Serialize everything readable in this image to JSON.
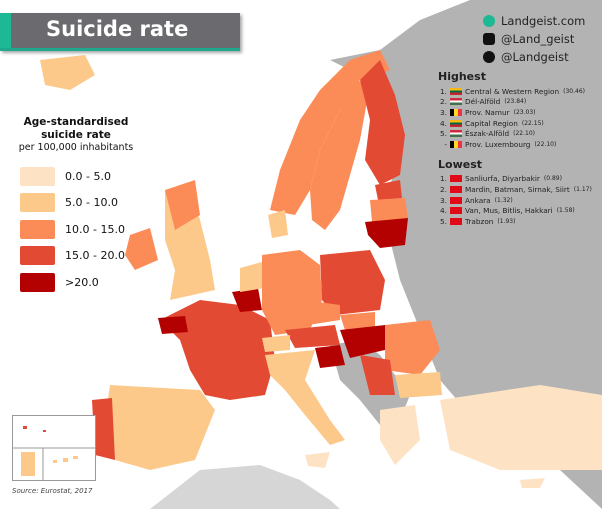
{
  "title": "Suicide rate",
  "social": {
    "website": "Landgeist.com",
    "instagram": "@Land_geist",
    "twitter": "@Landgeist"
  },
  "legend": {
    "title_line1": "Age-standardised",
    "title_line2": "suicide rate",
    "subtitle": "per 100,000 inhabitants",
    "classes": [
      {
        "label": "0.0  -  5.0",
        "color": "#fde3c4"
      },
      {
        "label": "5.0  - 10.0",
        "color": "#fcc98b"
      },
      {
        "label": "10.0 - 15.0",
        "color": "#fb8c57"
      },
      {
        "label": "15.0 - 20.0",
        "color": "#e34a33"
      },
      {
        "label": ">20.0",
        "color": "#b30000"
      }
    ]
  },
  "highest": {
    "heading": "Highest",
    "items": [
      {
        "rank": "1.",
        "flag": "lithuania",
        "name": "Central & Western Region",
        "value": "(30.46)"
      },
      {
        "rank": "2.",
        "flag": "hungary",
        "name": "Dél-Alföld",
        "value": "(23.84)"
      },
      {
        "rank": "3.",
        "flag": "belgium",
        "name": "Prov. Namur",
        "value": "(23.03)"
      },
      {
        "rank": "4.",
        "flag": "lithuania",
        "name": "Capital Region",
        "value": "(22.15)"
      },
      {
        "rank": "5.",
        "flag": "hungary",
        "name": "Észak-Alföld",
        "value": "(22.10)"
      },
      {
        "rank": "-",
        "flag": "belgium",
        "name": "Prov. Luxembourg",
        "value": "(22.10)"
      }
    ]
  },
  "lowest": {
    "heading": "Lowest",
    "items": [
      {
        "rank": "1.",
        "flag": "turkey",
        "name": "Sanliurfa, Diyarbakir",
        "value": "(0.89)"
      },
      {
        "rank": "2.",
        "flag": "turkey",
        "name": "Mardin, Batman, Sirnak, Siirt",
        "value": "(1.17)"
      },
      {
        "rank": "3.",
        "flag": "turkey",
        "name": "Ankara",
        "value": "(1.32)"
      },
      {
        "rank": "4.",
        "flag": "turkey",
        "name": "Van, Mus, Bitlis, Hakkari",
        "value": "(1.58)"
      },
      {
        "rank": "5.",
        "flag": "turkey",
        "name": "Trabzon",
        "value": "(1.93)"
      }
    ]
  },
  "source": "Source: Eurostat, 2017",
  "colors": {
    "no_data": "#b3b3b3",
    "sea": "#ffffff",
    "accent": "#1db894",
    "banner": "#6b6b6f"
  }
}
